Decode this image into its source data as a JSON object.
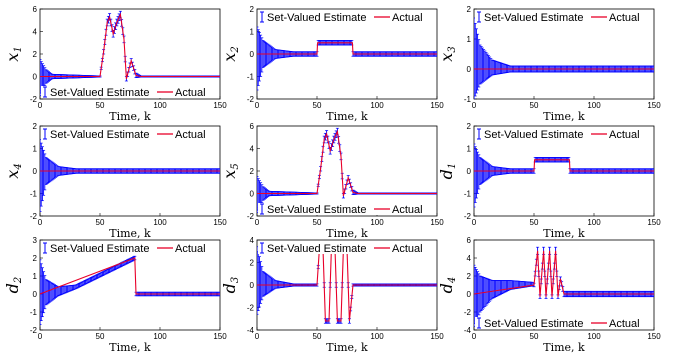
{
  "colors": {
    "estimate": "#0000ff",
    "actual": "#e8002a",
    "axis": "#000000",
    "background": "#ffffff"
  },
  "chart_data": [
    {
      "type": "line",
      "id": "x1",
      "ylabel": "x",
      "ysub": "1",
      "xlabel": "Time, k",
      "xlim": [
        0,
        150
      ],
      "ylim": [
        -2,
        6
      ],
      "yticks": [
        -2,
        0,
        2,
        4,
        6
      ],
      "xticks": [
        0,
        50,
        100,
        150
      ],
      "legend": "bottom-left",
      "series": [
        {
          "name": "Set-Valued Estimate",
          "x": [
            0,
            5,
            10,
            50,
            53,
            56,
            58,
            61,
            64,
            67,
            70,
            72,
            76,
            80,
            84,
            150
          ],
          "lower": [
            -1.7,
            -0.6,
            -0.2,
            -0.05,
            2.0,
            4.5,
            5.0,
            3.5,
            4.5,
            5.2,
            3.0,
            -0.4,
            1.2,
            -0.1,
            -0.05,
            -0.05
          ],
          "upper": [
            1.5,
            0.6,
            0.2,
            0.05,
            2.4,
            5.1,
            5.6,
            4.1,
            5.1,
            5.8,
            3.6,
            0.0,
            1.6,
            0.3,
            0.05,
            0.05
          ]
        },
        {
          "name": "Actual",
          "x": [
            0,
            10,
            50,
            53,
            56,
            58,
            61,
            64,
            67,
            70,
            72,
            76,
            80,
            84,
            150
          ],
          "values": [
            0.0,
            0.0,
            0.0,
            2.2,
            4.8,
            5.3,
            3.8,
            4.8,
            5.5,
            3.3,
            -0.2,
            1.4,
            0.1,
            0.0,
            0.0
          ]
        }
      ]
    },
    {
      "type": "line",
      "id": "x2",
      "ylabel": "x",
      "ysub": "2",
      "xlabel": "Time, k",
      "xlim": [
        0,
        150
      ],
      "ylim": [
        -2,
        2
      ],
      "yticks": [
        -2,
        -1,
        0,
        1,
        2
      ],
      "xticks": [
        0,
        50,
        100,
        150
      ],
      "legend": "top-left",
      "series": [
        {
          "name": "Set-Valued Estimate",
          "x": [
            0,
            5,
            15,
            30,
            50,
            50.5,
            79.5,
            80,
            150
          ],
          "lower": [
            -1.6,
            -0.6,
            -0.2,
            -0.1,
            -0.1,
            0.4,
            0.4,
            -0.1,
            -0.1
          ],
          "upper": [
            1.2,
            0.6,
            0.2,
            0.1,
            0.1,
            0.6,
            0.6,
            0.1,
            0.1
          ]
        },
        {
          "name": "Actual",
          "x": [
            0,
            50,
            50.5,
            79.5,
            80,
            150
          ],
          "values": [
            0,
            0,
            0.5,
            0.5,
            0,
            0
          ]
        }
      ]
    },
    {
      "type": "line",
      "id": "x3",
      "ylabel": "x",
      "ysub": "3",
      "xlabel": "Time, k",
      "xlim": [
        0,
        150
      ],
      "ylim": [
        -1,
        2
      ],
      "yticks": [
        -1,
        0,
        1,
        2
      ],
      "xticks": [
        0,
        50,
        100,
        150
      ],
      "legend": "top-left",
      "series": [
        {
          "name": "Set-Valued Estimate",
          "x": [
            0,
            5,
            15,
            30,
            150
          ],
          "lower": [
            -1.0,
            -0.5,
            -0.2,
            -0.1,
            -0.1
          ],
          "upper": [
            1.7,
            0.8,
            0.3,
            0.1,
            0.1
          ]
        },
        {
          "name": "Actual",
          "x": [
            0,
            150
          ],
          "values": [
            0,
            0
          ]
        }
      ]
    },
    {
      "type": "line",
      "id": "x4",
      "ylabel": "x",
      "ysub": "4",
      "xlabel": "Time, k",
      "xlim": [
        0,
        150
      ],
      "ylim": [
        -2,
        2
      ],
      "yticks": [
        -2,
        -1,
        0,
        1,
        2
      ],
      "xticks": [
        0,
        50,
        100,
        150
      ],
      "legend": "top-left",
      "series": [
        {
          "name": "Set-Valued Estimate",
          "x": [
            0,
            5,
            15,
            30,
            150
          ],
          "lower": [
            -1.8,
            -0.6,
            -0.2,
            -0.1,
            -0.1
          ],
          "upper": [
            1.4,
            0.6,
            0.2,
            0.1,
            0.1
          ]
        },
        {
          "name": "Actual",
          "x": [
            0,
            150
          ],
          "values": [
            0,
            0
          ]
        }
      ]
    },
    {
      "type": "line",
      "id": "x5",
      "ylabel": "x",
      "ysub": "5",
      "xlabel": "Time, k",
      "xlim": [
        0,
        150
      ],
      "ylim": [
        -2,
        6
      ],
      "yticks": [
        -2,
        0,
        2,
        4,
        6
      ],
      "xticks": [
        0,
        50,
        100,
        150
      ],
      "legend": "bottom-left",
      "series": [
        {
          "name": "Set-Valued Estimate",
          "x": [
            0,
            5,
            10,
            50,
            53,
            56,
            58,
            61,
            64,
            67,
            70,
            72,
            76,
            80,
            84,
            150
          ],
          "lower": [
            -1.7,
            -0.6,
            -0.2,
            -0.05,
            2.0,
            4.5,
            5.0,
            3.5,
            4.5,
            5.2,
            3.0,
            -0.4,
            1.2,
            -0.1,
            -0.05,
            -0.05
          ],
          "upper": [
            1.5,
            0.6,
            0.2,
            0.05,
            2.4,
            5.1,
            5.6,
            4.1,
            5.1,
            5.8,
            3.6,
            0.0,
            1.6,
            0.3,
            0.05,
            0.05
          ]
        },
        {
          "name": "Actual",
          "x": [
            0,
            10,
            50,
            53,
            56,
            58,
            61,
            64,
            67,
            70,
            72,
            76,
            80,
            84,
            150
          ],
          "values": [
            0.0,
            0.0,
            0.0,
            2.2,
            4.8,
            5.3,
            3.8,
            4.8,
            5.5,
            3.3,
            -0.2,
            1.4,
            0.1,
            0.0,
            0.0
          ]
        }
      ]
    },
    {
      "type": "line",
      "id": "d1",
      "ylabel": "d",
      "ysub": "1",
      "xlabel": "Time, k",
      "xlim": [
        0,
        150
      ],
      "ylim": [
        -2,
        2
      ],
      "yticks": [
        -2,
        -1,
        0,
        1,
        2
      ],
      "xticks": [
        0,
        50,
        100,
        150
      ],
      "legend": "top-left",
      "series": [
        {
          "name": "Set-Valued Estimate",
          "x": [
            0,
            5,
            15,
            30,
            50,
            50.5,
            79.5,
            80,
            150
          ],
          "lower": [
            -1.6,
            -0.6,
            -0.2,
            -0.1,
            -0.1,
            0.4,
            0.4,
            -0.1,
            -0.1
          ],
          "upper": [
            1.2,
            0.6,
            0.2,
            0.1,
            0.1,
            0.6,
            0.6,
            0.1,
            0.1
          ]
        },
        {
          "name": "Actual",
          "x": [
            0,
            50,
            50.5,
            79.5,
            80,
            150
          ],
          "values": [
            0,
            0,
            0.5,
            0.5,
            0,
            0
          ]
        }
      ]
    },
    {
      "type": "line",
      "id": "d2",
      "ylabel": "d",
      "ysub": "2",
      "xlabel": "Time, k",
      "xlim": [
        0,
        150
      ],
      "ylim": [
        -2,
        3
      ],
      "yticks": [
        -2,
        -1,
        0,
        1,
        2,
        3
      ],
      "xticks": [
        0,
        50,
        100,
        150
      ],
      "legend": "top-left",
      "series": [
        {
          "name": "Set-Valued Estimate",
          "x": [
            0,
            5,
            15,
            30,
            79,
            80,
            150
          ],
          "lower": [
            -1.7,
            -0.6,
            -0.1,
            0.3,
            1.9,
            -0.1,
            -0.1
          ],
          "upper": [
            1.9,
            0.8,
            0.4,
            0.5,
            2.1,
            0.1,
            0.1
          ]
        },
        {
          "name": "Actual",
          "x": [
            0,
            79,
            80,
            150
          ],
          "values": [
            0,
            2.0,
            0,
            0
          ]
        }
      ]
    },
    {
      "type": "line",
      "id": "d3",
      "ylabel": "d",
      "ysub": "3",
      "xlabel": "Time, k",
      "xlim": [
        0,
        150
      ],
      "ylim": [
        -4,
        4
      ],
      "yticks": [
        -4,
        -2,
        0,
        2,
        4
      ],
      "xticks": [
        0,
        50,
        100,
        150
      ],
      "legend": "top-left",
      "series": [
        {
          "name": "Set-Valued Estimate",
          "x": [
            0,
            5,
            15,
            30,
            50,
            52,
            55,
            57,
            60,
            62,
            65,
            67,
            70,
            72,
            75,
            77,
            80,
            150
          ],
          "lower": [
            -2.6,
            -1.0,
            -0.3,
            -0.1,
            -0.1,
            3.0,
            3.0,
            -3.4,
            -3.4,
            3.0,
            3.0,
            -3.4,
            -3.4,
            3.0,
            3.0,
            -3.4,
            -0.1,
            -0.1
          ],
          "upper": [
            3.4,
            1.2,
            0.4,
            0.1,
            0.1,
            3.4,
            3.4,
            -3.0,
            -3.0,
            3.4,
            3.4,
            -3.0,
            -3.0,
            3.4,
            3.4,
            -3.0,
            0.1,
            0.1
          ]
        },
        {
          "name": "Actual",
          "x": [
            0,
            50,
            52,
            55,
            57,
            60,
            62,
            65,
            67,
            70,
            72,
            75,
            77,
            80,
            150
          ],
          "values": [
            0,
            0,
            3.2,
            3.2,
            -3.2,
            -3.2,
            3.2,
            3.2,
            -3.2,
            -3.2,
            3.2,
            3.2,
            -3.2,
            0,
            0
          ]
        }
      ]
    },
    {
      "type": "line",
      "id": "d4",
      "ylabel": "d",
      "ysub": "4",
      "xlabel": "Time, k",
      "xlim": [
        0,
        150
      ],
      "ylim": [
        -4,
        6
      ],
      "yticks": [
        -4,
        -2,
        0,
        2,
        4,
        6
      ],
      "xticks": [
        0,
        50,
        100,
        150
      ],
      "legend": "bottom-left",
      "series": [
        {
          "name": "Set-Valued Estimate",
          "x": [
            0,
            5,
            15,
            30,
            49,
            50,
            53,
            55,
            58,
            60,
            63,
            65,
            68,
            70,
            72,
            75,
            150
          ],
          "lower": [
            -3.6,
            -2.0,
            -0.5,
            0.5,
            0.9,
            0.8,
            4.4,
            -0.5,
            4.4,
            -0.5,
            4.4,
            -0.5,
            4.4,
            -0.5,
            1.5,
            -0.3,
            -0.3
          ],
          "upper": [
            3.2,
            2.0,
            1.5,
            1.5,
            1.3,
            1.2,
            5.2,
            -0.1,
            5.2,
            -0.1,
            5.2,
            -0.1,
            5.2,
            -0.1,
            1.9,
            0.3,
            0.3
          ]
        },
        {
          "name": "Actual",
          "x": [
            0,
            50,
            53,
            55,
            58,
            60,
            63,
            65,
            68,
            70,
            72,
            75,
            150
          ],
          "values": [
            0,
            1.0,
            4.8,
            -0.3,
            4.8,
            -0.3,
            4.8,
            -0.3,
            4.8,
            -0.3,
            1.7,
            0,
            0
          ]
        }
      ]
    }
  ]
}
